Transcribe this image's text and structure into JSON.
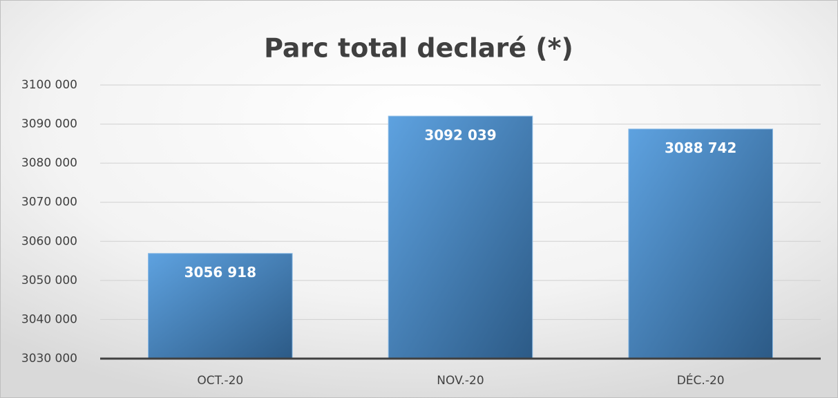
{
  "chart_data": {
    "type": "bar",
    "title": "Parc total declaré (*)",
    "categories": [
      "OCT.-20",
      "NOV.-20",
      "DÉC.-20"
    ],
    "values": [
      3056918,
      3092039,
      3088742
    ],
    "value_labels": [
      "3056 918",
      "3092 039",
      "3088 742"
    ],
    "color": "#4a8cc9",
    "ylim": [
      3030000,
      3100000
    ],
    "yticks": [
      {
        "value": 3030000,
        "label": "3030 000"
      },
      {
        "value": 3040000,
        "label": "3040 000"
      },
      {
        "value": 3050000,
        "label": "3050 000"
      },
      {
        "value": 3060000,
        "label": "3060 000"
      },
      {
        "value": 3070000,
        "label": "3070 000"
      },
      {
        "value": 3080000,
        "label": "3080 000"
      },
      {
        "value": 3090000,
        "label": "3090 000"
      },
      {
        "value": 3100000,
        "label": "3100 000"
      }
    ],
    "grid": true
  }
}
